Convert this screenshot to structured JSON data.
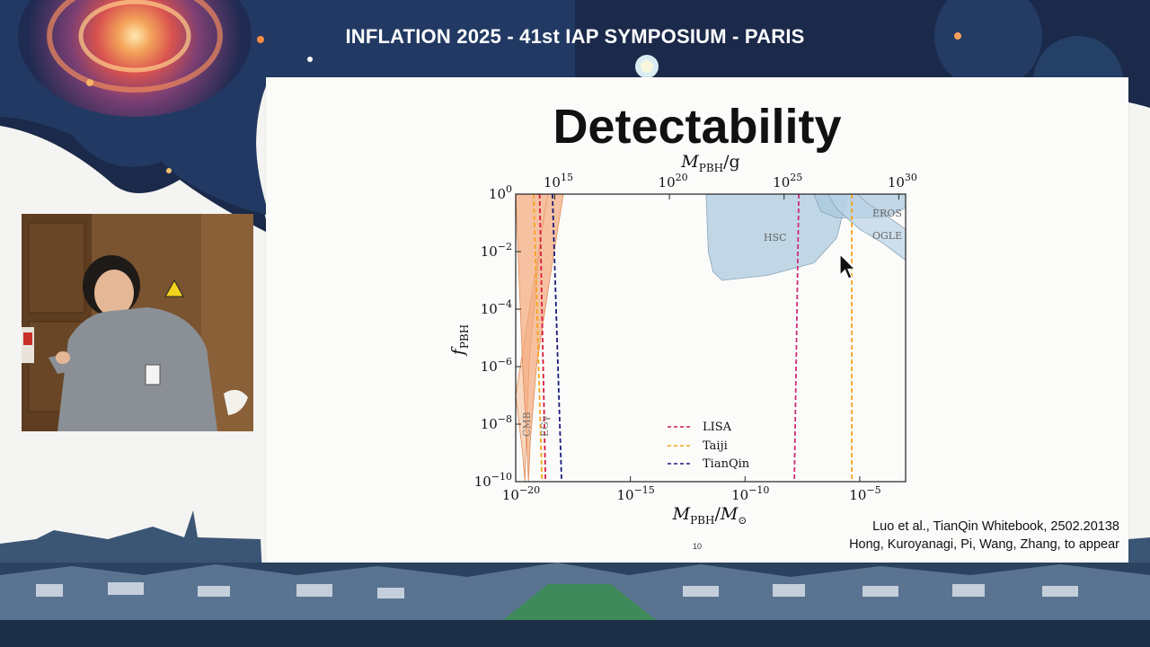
{
  "banner": {
    "title": "INFLATION 2025 - 41st IAP SYMPOSIUM - PARIS"
  },
  "slide": {
    "title": "Detectability",
    "page_number": "10",
    "references": [
      "Luo et al., TianQin Whitebook, 2502.20138",
      "Hong, Kuroyanagi, Pi, Wang, Zhang, to appear"
    ]
  },
  "chart_data": {
    "type": "line",
    "xlabel": "M_PBH/M_⊙",
    "ylabel": "f_PBH",
    "top_xlabel": "M_PBH/g",
    "x_scale": "log",
    "y_scale": "log",
    "xlim": [
      1e-20,
      0.001
    ],
    "ylim": [
      1e-10,
      1.0
    ],
    "x_ticks": [
      1e-20,
      1e-15,
      1e-10,
      1e-05
    ],
    "x_tick_labels": [
      "10^−20",
      "10^−15",
      "10^−10",
      "10^−5"
    ],
    "y_ticks": [
      1e-10,
      1e-08,
      1e-06,
      0.0001,
      0.01,
      1
    ],
    "y_tick_labels": [
      "10^−10",
      "10^−8",
      "10^−6",
      "10^−4",
      "10^−2",
      "10^0"
    ],
    "top_ticks_grams": [
      1000000000000000.0,
      1e+20,
      1e+25,
      1e+30
    ],
    "top_tick_labels": [
      "10^15",
      "10^20",
      "10^25",
      "10^30"
    ],
    "constraints": [
      {
        "label": "CMB",
        "color": "#f6c9a8",
        "points": [
          [
            1e-20,
            1e-07
          ],
          [
            2e-20,
            1e-09
          ],
          [
            2.5e-20,
            1e-10
          ],
          [
            2.9e-20,
            5e-09
          ],
          [
            4e-20,
            2e-06
          ],
          [
            8e-20,
            0.001
          ],
          [
            1.5e-19,
            0.1
          ],
          [
            2.5e-19,
            1
          ]
        ]
      },
      {
        "label": "EGγ",
        "color": "#f3a87a",
        "points": [
          [
            1e-20,
            1
          ],
          [
            2e-20,
            1e-06
          ],
          [
            3e-20,
            3e-09
          ],
          [
            3.6e-20,
            1e-10
          ],
          [
            4.4e-20,
            3e-09
          ],
          [
            8e-20,
            1e-06
          ],
          [
            3e-19,
            0.001
          ],
          [
            1.2e-18,
            1
          ]
        ]
      },
      {
        "label": "HSC",
        "color": "#a8c7dd",
        "points": [
          [
            2e-12,
            1
          ],
          [
            2.5e-12,
            0.01
          ],
          [
            4e-12,
            0.002
          ],
          [
            1e-11,
            0.001
          ],
          [
            1e-09,
            0.0015
          ],
          [
            1e-07,
            0.004
          ],
          [
            1e-06,
            0.03
          ],
          [
            3e-06,
            1
          ]
        ]
      },
      {
        "label": "EROS",
        "color": "#a8c7dd",
        "points": [
          [
            1e-07,
            1
          ],
          [
            2e-07,
            0.25
          ],
          [
            1e-06,
            0.15
          ],
          [
            0.0001,
            0.15
          ],
          [
            0.0005,
            0.25
          ],
          [
            0.001,
            0.35
          ],
          [
            0.001,
            1
          ]
        ]
      },
      {
        "label": "OGLE",
        "color": "#b9d3e5",
        "points": [
          [
            4e-07,
            1
          ],
          [
            1e-06,
            0.3
          ],
          [
            1e-05,
            0.06
          ],
          [
            0.0001,
            0.02
          ],
          [
            0.001,
            0.005
          ],
          [
            0.001,
            0.06
          ],
          [
            0.0002,
            0.15
          ],
          [
            2e-05,
            0.5
          ],
          [
            8e-06,
            1
          ]
        ]
      }
    ],
    "series": [
      {
        "name": "LISA",
        "color": "#d81b3c",
        "points": [
          [
            1.1e-19,
            1
          ],
          [
            2e-19,
            1e-10
          ]
        ]
      },
      {
        "name": "Taiji",
        "color": "#f5a31b",
        "points": [
          [
            6e-20,
            1
          ],
          [
            1.4e-19,
            1e-10
          ]
        ]
      },
      {
        "name": "TianQin",
        "color": "#1a1a7a",
        "points": [
          [
            4e-19,
            1
          ],
          [
            1e-18,
            1e-10
          ]
        ]
      },
      {
        "name": "",
        "color": "#cc2c7a",
        "points": [
          [
            2.2e-08,
            1
          ],
          [
            1.4e-08,
            1e-10
          ]
        ]
      },
      {
        "name": "",
        "color": "#f5a31b",
        "points": [
          [
            4.5e-06,
            1
          ],
          [
            4.5e-06,
            1e-10
          ]
        ]
      }
    ],
    "legend": {
      "placement": "bottom-center",
      "entries": [
        "LISA",
        "Taiji",
        "TianQin"
      ]
    }
  }
}
